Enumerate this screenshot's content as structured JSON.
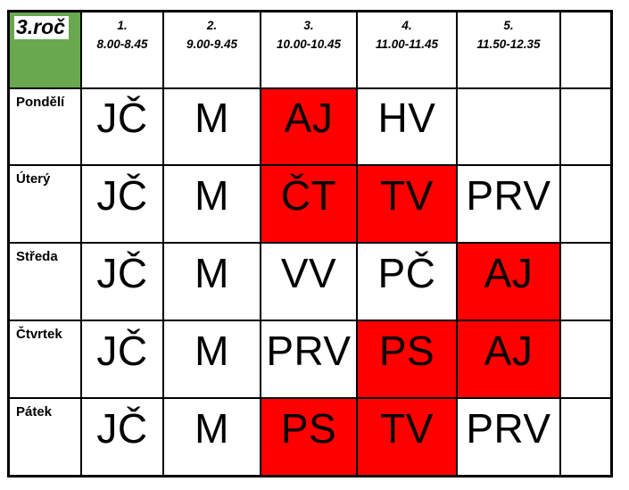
{
  "title": {
    "label": "3.roč"
  },
  "colors": {
    "accent_green": "#6aa84f",
    "highlight_red": "#ff0000",
    "grid_black": "#000000",
    "cell_white": "#ffffff"
  },
  "header": {
    "periods": [
      {
        "number": "1.",
        "time": "8.00-8.45"
      },
      {
        "number": "2.",
        "time": "9.00-9.45"
      },
      {
        "number": "3.",
        "time": "10.00-10.45"
      },
      {
        "number": "4.",
        "time": "11.00-11.45"
      },
      {
        "number": "5.",
        "time": "11.50-12.35"
      },
      {
        "number": "",
        "time": ""
      }
    ]
  },
  "rows": [
    {
      "day": "Pondělí",
      "cells": [
        {
          "subject": "JČ",
          "highlight": false
        },
        {
          "subject": "M",
          "highlight": false
        },
        {
          "subject": "AJ",
          "highlight": true
        },
        {
          "subject": "HV",
          "highlight": false
        },
        {
          "subject": "",
          "highlight": false
        },
        {
          "subject": "",
          "highlight": false
        }
      ]
    },
    {
      "day": "Úterý",
      "cells": [
        {
          "subject": "JČ",
          "highlight": false
        },
        {
          "subject": "M",
          "highlight": false
        },
        {
          "subject": "ČT",
          "highlight": true
        },
        {
          "subject": "TV",
          "highlight": true
        },
        {
          "subject": "PRV",
          "highlight": false
        },
        {
          "subject": "",
          "highlight": false
        }
      ]
    },
    {
      "day": "Středa",
      "cells": [
        {
          "subject": "JČ",
          "highlight": false
        },
        {
          "subject": "M",
          "highlight": false
        },
        {
          "subject": "VV",
          "highlight": false
        },
        {
          "subject": "PČ",
          "highlight": false
        },
        {
          "subject": "AJ",
          "highlight": true
        },
        {
          "subject": "",
          "highlight": false
        }
      ]
    },
    {
      "day": "Čtvrtek",
      "cells": [
        {
          "subject": "JČ",
          "highlight": false
        },
        {
          "subject": "M",
          "highlight": false
        },
        {
          "subject": "PRV",
          "highlight": false
        },
        {
          "subject": "PS",
          "highlight": true
        },
        {
          "subject": "AJ",
          "highlight": true
        },
        {
          "subject": "",
          "highlight": false
        }
      ]
    },
    {
      "day": "Pátek",
      "cells": [
        {
          "subject": "JČ",
          "highlight": false
        },
        {
          "subject": "M",
          "highlight": false
        },
        {
          "subject": "PS",
          "highlight": true
        },
        {
          "subject": "TV",
          "highlight": true
        },
        {
          "subject": "PRV",
          "highlight": false
        },
        {
          "subject": "",
          "highlight": false
        }
      ]
    }
  ]
}
